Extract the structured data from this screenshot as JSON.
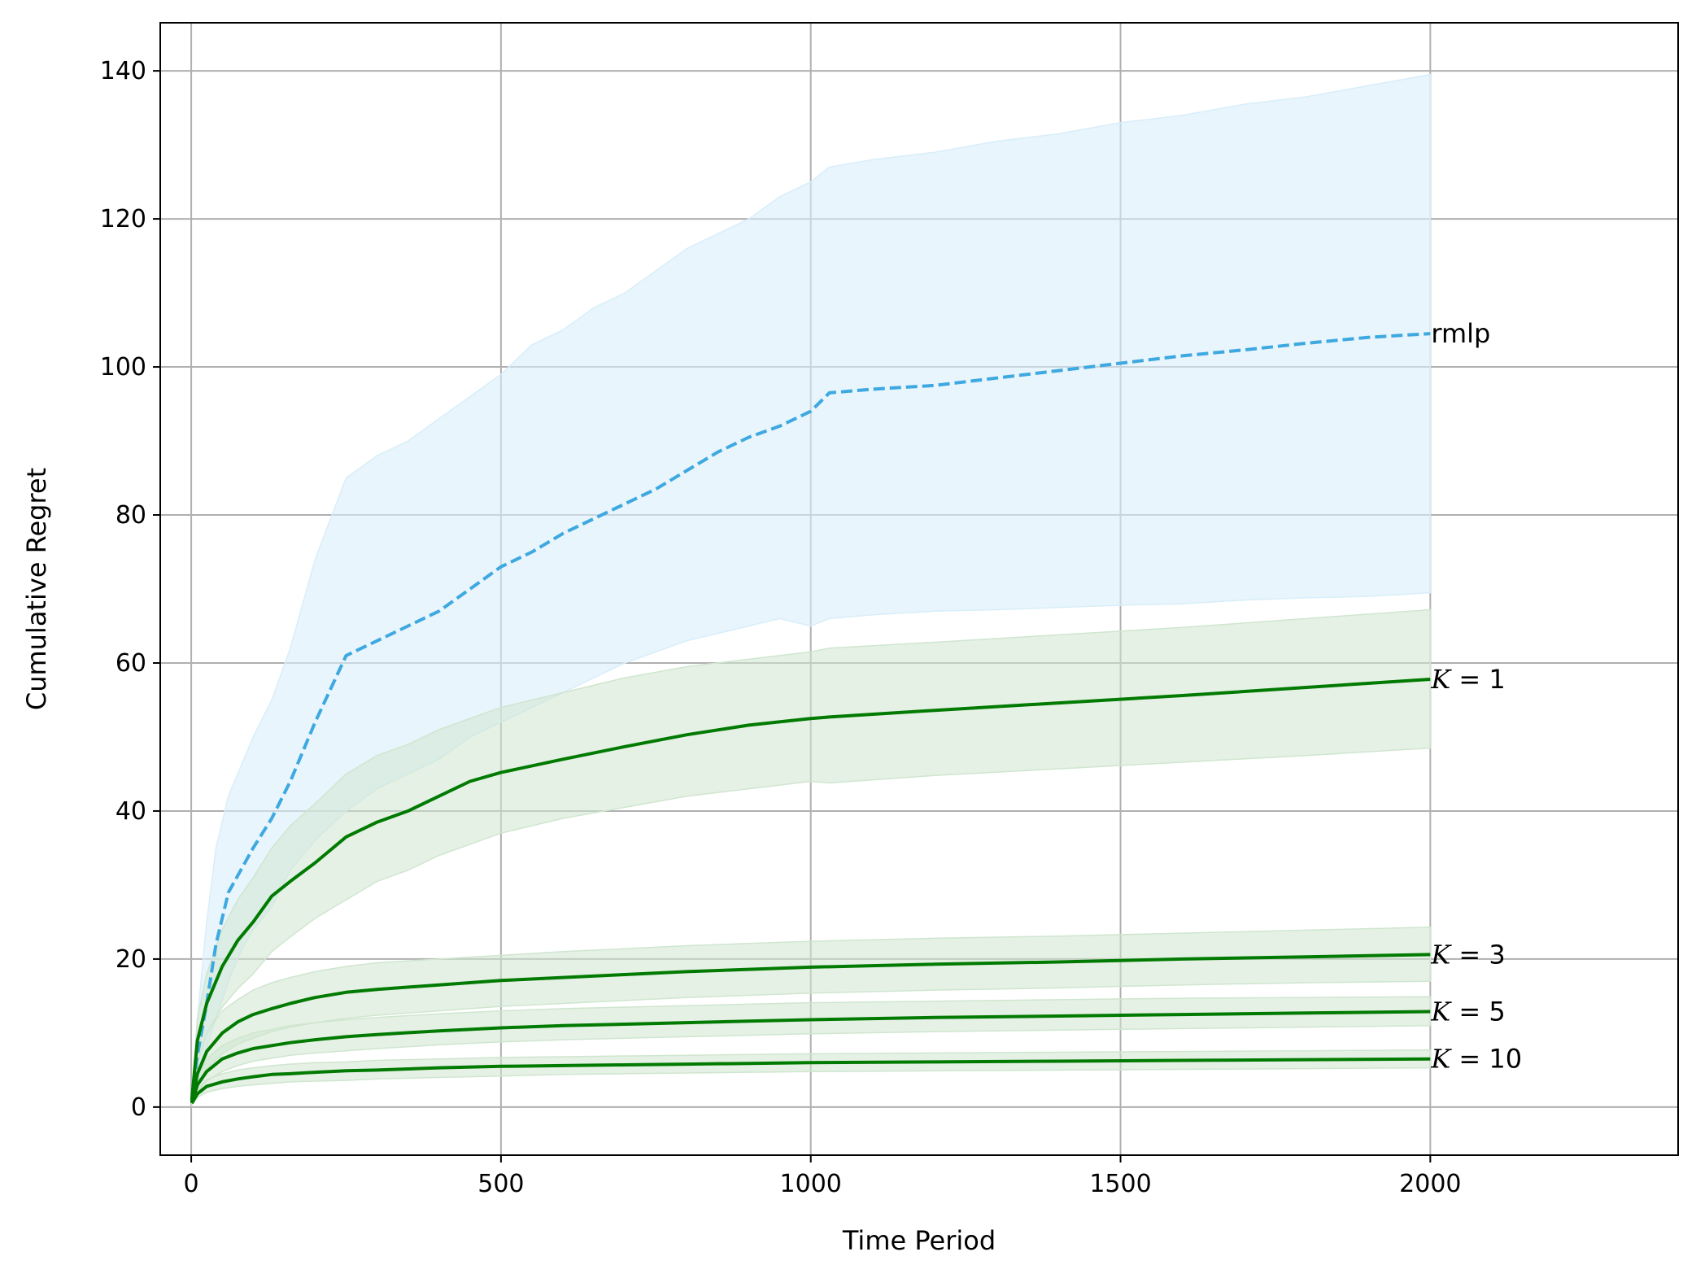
{
  "chart_data": {
    "type": "line",
    "title": "",
    "xlabel": "Time Period",
    "ylabel": "Cumulative Regret",
    "xlim": [
      -50,
      2400
    ],
    "ylim": [
      -6.5,
      146.5
    ],
    "xticks": [
      0,
      500,
      1000,
      1500,
      2000
    ],
    "yticks": [
      0,
      20,
      40,
      60,
      80,
      100,
      120,
      140
    ],
    "grid": true,
    "legend": "none (series labeled at line ends)",
    "colors": {
      "rmlp_line": "#3ea8e0",
      "rmlp_band": "#d8eefa",
      "k_line": "#007a00",
      "k_band": "#cfe6cf",
      "grid": "#b0b0b0"
    },
    "series": [
      {
        "name": "rmlp",
        "label": "rmlp",
        "label_prefix": "",
        "label_value": "",
        "style": "dashed",
        "color": "#3ea8e0",
        "band_color": "#d8eefa",
        "x": [
          1,
          10,
          25,
          40,
          60,
          80,
          100,
          130,
          160,
          200,
          250,
          300,
          350,
          400,
          450,
          500,
          550,
          600,
          650,
          700,
          750,
          800,
          850,
          900,
          950,
          1000,
          1030,
          1100,
          1200,
          1300,
          1400,
          1500,
          1600,
          1700,
          1800,
          1900,
          2000
        ],
        "y": [
          0.8,
          7,
          14,
          22,
          29,
          32,
          35,
          39,
          44,
          52,
          61,
          63,
          65,
          67,
          70,
          73,
          75,
          77.5,
          79.5,
          81.5,
          83.5,
          86,
          88.5,
          90.5,
          92,
          94,
          96.5,
          97,
          97.5,
          98.5,
          99.5,
          100.5,
          101.5,
          102.3,
          103.2,
          104,
          104.5
        ],
        "upper": [
          1,
          12,
          25,
          35,
          42,
          46,
          50,
          55,
          62,
          74,
          85,
          88,
          90,
          93,
          96,
          99,
          103,
          105,
          108,
          110,
          113,
          116,
          118,
          120,
          123,
          125,
          127,
          128,
          129,
          130.5,
          131.5,
          133,
          134,
          135.5,
          136.5,
          138,
          139.5
        ],
        "lower": [
          0.5,
          3,
          8,
          12,
          17,
          21,
          24,
          27,
          32,
          36,
          40,
          43,
          45,
          47,
          50,
          52,
          54,
          56,
          58,
          60,
          61.5,
          63,
          64,
          65,
          66,
          65,
          66,
          66.5,
          67,
          67.2,
          67.5,
          67.8,
          68,
          68.5,
          68.8,
          69,
          69.5
        ]
      },
      {
        "name": "K = 1",
        "label": "K = 1",
        "label_prefix": "K",
        "label_value": " = 1",
        "style": "solid",
        "color": "#007a00",
        "band_color": "#cfe6cf",
        "x": [
          1,
          10,
          25,
          50,
          75,
          100,
          130,
          160,
          200,
          250,
          300,
          350,
          400,
          450,
          500,
          600,
          700,
          800,
          900,
          1000,
          1030,
          1200,
          1400,
          1600,
          1800,
          2000
        ],
        "y": [
          1,
          9,
          14,
          19,
          22.5,
          25,
          28.5,
          30.5,
          33,
          36.5,
          38.5,
          40,
          42,
          44,
          45.2,
          47,
          48.7,
          50.3,
          51.6,
          52.5,
          52.7,
          53.6,
          54.6,
          55.6,
          56.7,
          57.8
        ],
        "upper": [
          1.5,
          12,
          18,
          24,
          28,
          31,
          35,
          38,
          41,
          45,
          47.5,
          49,
          51,
          52.5,
          54,
          56,
          58,
          59.5,
          60.5,
          61.5,
          62,
          62.8,
          63.8,
          64.8,
          66,
          67.2
        ],
        "lower": [
          0.5,
          6,
          10,
          13.5,
          16,
          18,
          21,
          23,
          25.5,
          28,
          30.5,
          32,
          34,
          35.5,
          37,
          39,
          40.5,
          42,
          43,
          44,
          43.8,
          44.8,
          45.7,
          46.6,
          47.5,
          48.5
        ]
      },
      {
        "name": "K = 3",
        "label": "K = 3",
        "label_prefix": "K",
        "label_value": " = 3",
        "style": "solid",
        "color": "#007a00",
        "band_color": "#cfe6cf",
        "x": [
          1,
          10,
          25,
          50,
          75,
          100,
          130,
          160,
          200,
          250,
          300,
          400,
          500,
          600,
          700,
          800,
          900,
          1000,
          1200,
          1400,
          1600,
          1800,
          2000
        ],
        "y": [
          0.7,
          4.5,
          7.5,
          10,
          11.5,
          12.5,
          13.3,
          14,
          14.8,
          15.5,
          15.9,
          16.5,
          17.1,
          17.5,
          17.9,
          18.3,
          18.6,
          18.9,
          19.3,
          19.6,
          20,
          20.3,
          20.6
        ],
        "upper": [
          1,
          6,
          10,
          13,
          14.5,
          15.8,
          16.8,
          17.5,
          18.3,
          19,
          19.5,
          20,
          20.5,
          21,
          21.4,
          21.8,
          22.1,
          22.4,
          22.8,
          23.1,
          23.5,
          23.9,
          24.3
        ],
        "lower": [
          0.4,
          3,
          5.2,
          7.2,
          8.5,
          9.3,
          10.2,
          10.8,
          11.4,
          12,
          12.4,
          13,
          13.6,
          14,
          14.4,
          14.8,
          15.1,
          15.4,
          15.8,
          16.1,
          16.5,
          16.8,
          17
        ]
      },
      {
        "name": "K = 5",
        "label": "K = 5",
        "label_prefix": "K",
        "label_value": " = 5",
        "style": "solid",
        "color": "#007a00",
        "band_color": "#cfe6cf",
        "x": [
          1,
          10,
          25,
          50,
          75,
          100,
          130,
          160,
          200,
          250,
          300,
          400,
          500,
          600,
          700,
          800,
          900,
          1000,
          1200,
          1400,
          1600,
          1800,
          2000
        ],
        "y": [
          0.6,
          3,
          4.8,
          6.5,
          7.3,
          7.9,
          8.3,
          8.7,
          9.1,
          9.5,
          9.8,
          10.3,
          10.7,
          11,
          11.2,
          11.4,
          11.6,
          11.8,
          12.1,
          12.3,
          12.5,
          12.7,
          12.9
        ],
        "upper": [
          0.8,
          4,
          6.5,
          8.3,
          9.3,
          10,
          10.5,
          11,
          11.4,
          11.8,
          12.1,
          12.6,
          13,
          13.3,
          13.5,
          13.7,
          13.9,
          14.1,
          14.3,
          14.5,
          14.7,
          14.8,
          14.9
        ],
        "lower": [
          0.4,
          2,
          3.5,
          4.8,
          5.6,
          6.2,
          6.6,
          7,
          7.3,
          7.6,
          7.9,
          8.4,
          8.8,
          9.1,
          9.3,
          9.5,
          9.7,
          9.9,
          10.2,
          10.4,
          10.6,
          10.8,
          11
        ]
      },
      {
        "name": "K = 10",
        "label": "K = 10",
        "label_prefix": "K",
        "label_value": " = 10",
        "style": "solid",
        "color": "#007a00",
        "band_color": "#cfe6cf",
        "x": [
          1,
          10,
          25,
          50,
          75,
          100,
          130,
          160,
          200,
          250,
          300,
          400,
          500,
          600,
          700,
          800,
          900,
          1000,
          1200,
          1400,
          1600,
          1800,
          2000
        ],
        "y": [
          0.5,
          1.8,
          2.8,
          3.4,
          3.8,
          4.1,
          4.4,
          4.5,
          4.7,
          4.9,
          5,
          5.3,
          5.5,
          5.6,
          5.7,
          5.8,
          5.9,
          6,
          6.1,
          6.2,
          6.3,
          6.4,
          6.5
        ],
        "upper": [
          0.7,
          2.4,
          3.7,
          4.5,
          5,
          5.3,
          5.6,
          5.8,
          6,
          6.1,
          6.3,
          6.5,
          6.7,
          6.8,
          6.9,
          7,
          7.1,
          7.2,
          7.3,
          7.4,
          7.5,
          7.6,
          7.7
        ],
        "lower": [
          0.3,
          1.3,
          2,
          2.5,
          2.8,
          3,
          3.2,
          3.4,
          3.5,
          3.6,
          3.8,
          4,
          4.2,
          4.4,
          4.5,
          4.6,
          4.7,
          4.8,
          4.9,
          5,
          5.1,
          5.2,
          5.3
        ]
      }
    ]
  }
}
